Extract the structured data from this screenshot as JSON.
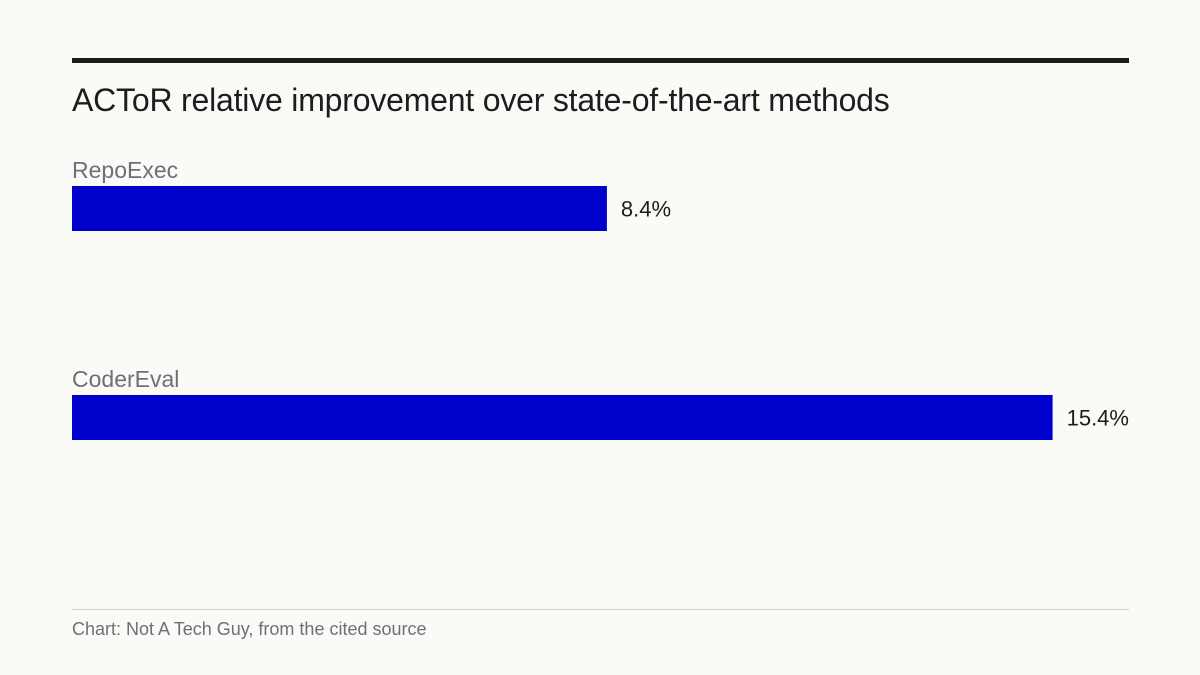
{
  "chart_data": {
    "type": "bar",
    "orientation": "horizontal",
    "title": "ACToR relative improvement over state-of-the-art methods",
    "categories": [
      "RepoExec",
      "CoderEval"
    ],
    "values": [
      8.4,
      15.4
    ],
    "value_labels": [
      "8.4%",
      "15.4%"
    ],
    "unit": "%",
    "xlim": [
      0,
      16.6
    ],
    "grid": false,
    "legend": "none",
    "bar_color": "#0000cc"
  },
  "footer": {
    "source": "Chart: Not A Tech Guy, from the cited source"
  }
}
